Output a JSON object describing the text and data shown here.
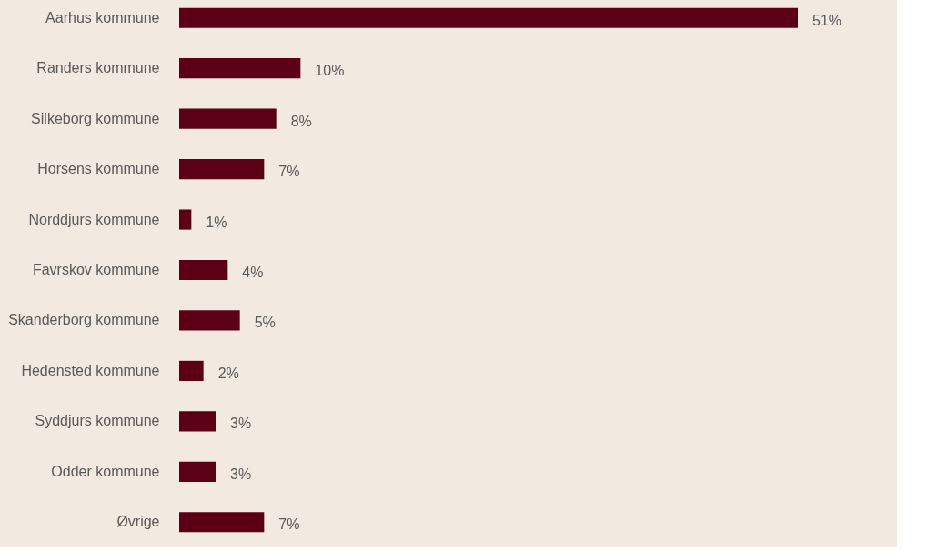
{
  "chart_data": {
    "type": "bar",
    "orientation": "horizontal",
    "categories": [
      "Aarhus kommune",
      "Randers kommune",
      "Silkeborg kommune",
      "Horsens kommune",
      "Norddjurs kommune",
      "Favrskov kommune",
      "Skanderborg kommune",
      "Hedensted kommune",
      "Syddjurs kommune",
      "Odder kommune",
      "Øvrige"
    ],
    "values": [
      51,
      10,
      8,
      7,
      1,
      4,
      5,
      2,
      3,
      3,
      7
    ],
    "value_labels": [
      "51%",
      "10%",
      "8%",
      "7%",
      "1%",
      "4%",
      "5%",
      "2%",
      "3%",
      "3%",
      "7%"
    ],
    "color": "#5c0016"
  }
}
